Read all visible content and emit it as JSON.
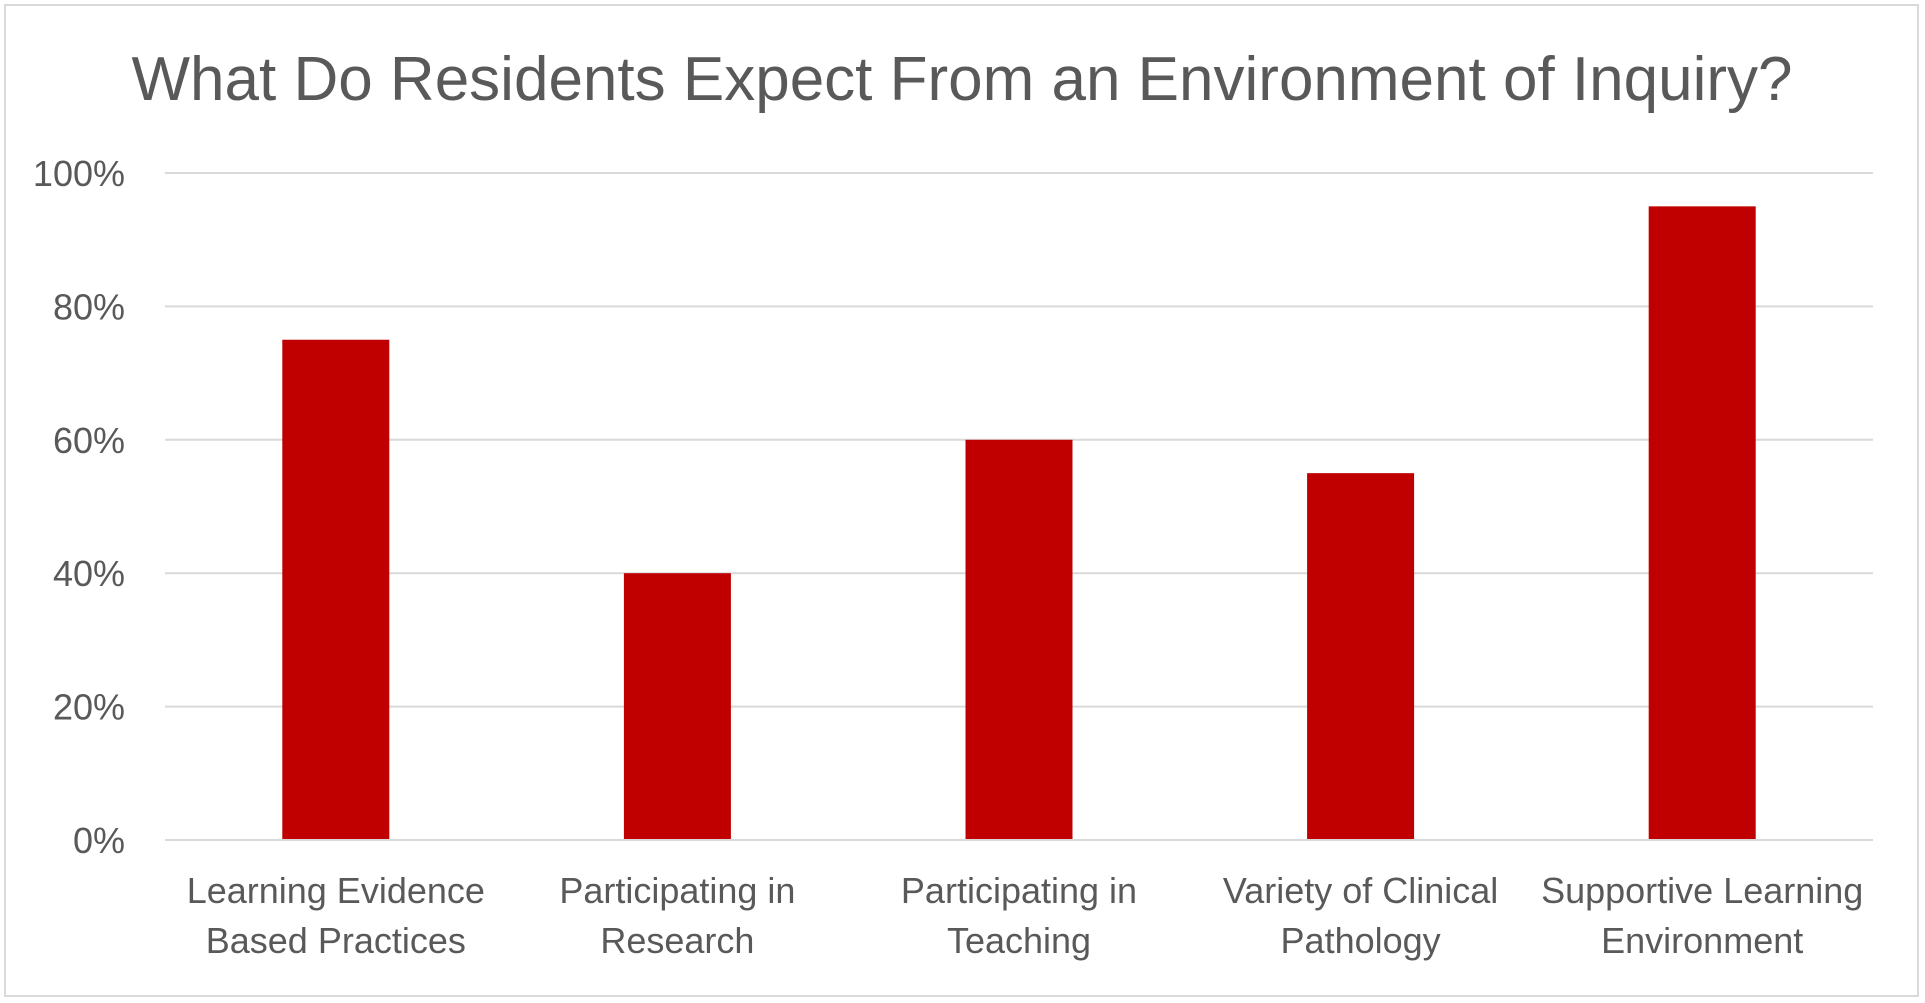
{
  "chart_data": {
    "type": "bar",
    "title": "What Do Residents Expect From an Environment of Inquiry?",
    "categories": [
      [
        "Learning Evidence",
        "Based Practices"
      ],
      [
        "Participating in",
        "Research"
      ],
      [
        "Participating in",
        "Teaching"
      ],
      [
        "Variety of Clinical",
        "Pathology"
      ],
      [
        "Supportive Learning",
        "Environment"
      ]
    ],
    "values": [
      75,
      40,
      60,
      55,
      95
    ],
    "ylim": [
      0,
      100
    ],
    "yticks": [
      0,
      20,
      40,
      60,
      80,
      100
    ],
    "ytick_labels": [
      "0%",
      "20%",
      "40%",
      "60%",
      "80%",
      "100%"
    ],
    "grid": true,
    "legend": "none",
    "colors": {
      "bar": "#c00000",
      "grid": "#d9d9d9",
      "text": "#595959",
      "axis": "#d9d9d9"
    }
  }
}
